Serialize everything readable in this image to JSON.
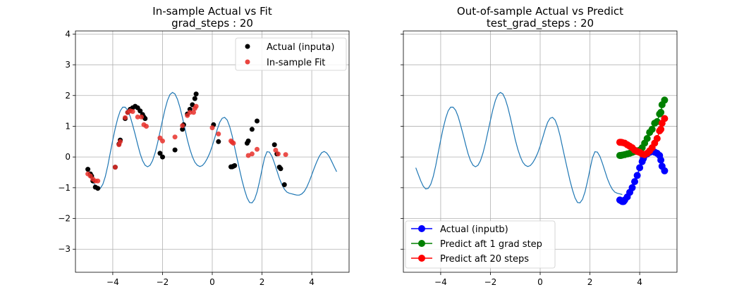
{
  "chart_data": [
    {
      "type": "scatter",
      "title": "In-sample Actual vs Fit",
      "subtitle": "grad_steps : 20",
      "xlabel": "",
      "ylabel": "",
      "xlim": [
        -5.5,
        5.5
      ],
      "ylim": [
        -3.75,
        4.1
      ],
      "xticks": [
        -4,
        -2,
        0,
        2,
        4
      ],
      "yticks": [
        -3,
        -2,
        -1,
        0,
        1,
        2,
        3,
        4
      ],
      "xtick_labels": [
        "−4",
        "−2",
        "0",
        "2",
        "4"
      ],
      "ytick_labels": [
        "−3",
        "−2",
        "−1",
        "0",
        "1",
        "2",
        "3",
        "4"
      ],
      "grid": true,
      "legend_position": "upper right",
      "curve": {
        "x": [
          -5.0,
          -4.9,
          -4.8,
          -4.7,
          -4.6,
          -4.5,
          -4.4,
          -4.3,
          -4.2,
          -4.1,
          -4.0,
          -3.9,
          -3.8,
          -3.7,
          -3.6,
          -3.5,
          -3.4,
          -3.3,
          -3.2,
          -3.1,
          -3.0,
          -2.9,
          -2.8,
          -2.7,
          -2.6,
          -2.5,
          -2.4,
          -2.3,
          -2.2,
          -2.1,
          -2.0,
          -1.9,
          -1.8,
          -1.7,
          -1.6,
          -1.5,
          -1.4,
          -1.3,
          -1.2,
          -1.1,
          -1.0,
          -0.9,
          -0.8,
          -0.7,
          -0.6,
          -0.5,
          -0.4,
          -0.3,
          -0.2,
          -0.1,
          0.0,
          0.1,
          0.2,
          0.3,
          0.4,
          0.5,
          0.6,
          0.7,
          0.8,
          0.9,
          1.0,
          1.1,
          1.2,
          1.3,
          1.4,
          1.5,
          1.6,
          1.7,
          1.8,
          1.9,
          2.0,
          2.1,
          2.2,
          2.3,
          2.4,
          2.5,
          2.6,
          2.7,
          2.8,
          2.9,
          3.0,
          3.1,
          3.2,
          3.3,
          3.4,
          3.5,
          3.6,
          3.7,
          3.8,
          3.9,
          4.0,
          4.1,
          4.2,
          4.3,
          4.4,
          4.5,
          4.6,
          4.7,
          4.8,
          4.9,
          5.0
        ],
        "y": [
          -0.35,
          -0.57,
          -0.78,
          -0.95,
          -1.04,
          -1.02,
          -0.89,
          -0.64,
          -0.28,
          0.14,
          0.55,
          0.93,
          1.26,
          1.5,
          1.62,
          1.62,
          1.52,
          1.32,
          1.04,
          0.73,
          0.41,
          0.11,
          -0.12,
          -0.27,
          -0.32,
          -0.27,
          -0.12,
          0.13,
          0.45,
          0.82,
          1.2,
          1.55,
          1.84,
          2.03,
          2.1,
          2.05,
          1.88,
          1.62,
          1.28,
          0.92,
          0.56,
          0.25,
          0.01,
          -0.17,
          -0.27,
          -0.31,
          -0.28,
          -0.19,
          -0.05,
          0.13,
          0.36,
          0.62,
          0.9,
          1.13,
          1.26,
          1.29,
          1.2,
          0.99,
          0.69,
          0.32,
          -0.06,
          -0.42,
          -0.77,
          -1.08,
          -1.33,
          -1.48,
          -1.49,
          -1.38,
          -1.14,
          -0.8,
          -0.41,
          -0.03,
          0.17,
          0.16,
          0.02,
          -0.2,
          -0.45,
          -0.7,
          -0.9,
          -1.05,
          -1.14,
          -1.18,
          -1.2,
          -1.22,
          -1.24,
          -1.24,
          -1.2,
          -1.12,
          -0.98,
          -0.79,
          -0.58,
          -0.36,
          -0.16,
          0.02,
          0.14,
          0.18,
          0.13,
          0.02,
          -0.14,
          -0.31,
          -0.48
        ]
      },
      "series": [
        {
          "name": "Actual (inputa)",
          "color": "#000000",
          "x": [
            -5.0,
            -4.9,
            -4.85,
            -4.8,
            -4.7,
            -4.6,
            -3.9,
            -3.75,
            -3.7,
            -3.5,
            -3.4,
            -3.3,
            -3.2,
            -3.1,
            -3.0,
            -2.9,
            -2.8,
            -2.75,
            -2.7,
            -2.1,
            -2.0,
            -1.5,
            -1.2,
            -1.15,
            -1.0,
            -0.9,
            -0.8,
            -0.7,
            -0.65,
            0.05,
            0.25,
            0.75,
            0.8,
            0.85,
            0.9,
            1.4,
            1.45,
            1.6,
            1.8,
            2.5,
            2.6,
            2.7,
            2.75,
            2.9
          ],
          "y": [
            -0.4,
            -0.55,
            -0.62,
            -0.78,
            -0.98,
            -1.02,
            -0.33,
            0.42,
            0.55,
            1.25,
            1.45,
            1.55,
            1.6,
            1.65,
            1.6,
            1.5,
            1.38,
            1.3,
            1.25,
            0.12,
            0.0,
            0.23,
            0.9,
            1.05,
            1.4,
            1.55,
            1.7,
            1.9,
            2.05,
            1.05,
            0.5,
            -0.32,
            -0.32,
            -0.3,
            -0.28,
            0.45,
            0.52,
            0.9,
            1.17,
            0.4,
            0.1,
            -0.33,
            -0.38,
            -0.9
          ]
        },
        {
          "name": "In-sample Fit",
          "color": "#e8302a",
          "x": [
            -5.0,
            -4.9,
            -4.8,
            -4.7,
            -4.6,
            -3.9,
            -3.75,
            -3.7,
            -3.5,
            -3.4,
            -3.3,
            -3.2,
            -3.0,
            -2.85,
            -2.75,
            -2.65,
            -2.1,
            -2.0,
            -1.5,
            -1.2,
            -1.0,
            -0.9,
            -0.75,
            -0.7,
            -0.65,
            0.0,
            0.25,
            0.75,
            0.8,
            0.85,
            1.45,
            1.6,
            1.8,
            2.55,
            2.65,
            2.95
          ],
          "y": [
            -0.55,
            -0.62,
            -0.72,
            -0.78,
            -0.78,
            -0.33,
            0.4,
            0.5,
            1.28,
            1.45,
            1.5,
            1.48,
            1.3,
            1.3,
            1.05,
            1.0,
            0.62,
            0.52,
            0.65,
            1.02,
            1.35,
            1.45,
            1.45,
            1.58,
            1.65,
            0.95,
            0.75,
            0.52,
            0.48,
            0.45,
            0.05,
            0.1,
            0.25,
            0.22,
            0.1,
            0.08
          ]
        }
      ]
    },
    {
      "type": "line",
      "title": "Out-of-sample Actual vs Predict",
      "subtitle": "test_grad_steps : 20",
      "xlabel": "",
      "ylabel": "",
      "xlim": [
        -5.5,
        5.5
      ],
      "ylim": [
        -3.75,
        4.1
      ],
      "xticks": [
        -4,
        -2,
        0,
        2,
        4
      ],
      "xtick_labels": [
        "−4",
        "−2",
        "0",
        "2",
        "4"
      ],
      "grid": true,
      "legend_position": "lower left",
      "curve": {
        "x": [
          -5.0,
          -4.9,
          -4.8,
          -4.7,
          -4.6,
          -4.5,
          -4.4,
          -4.3,
          -4.2,
          -4.1,
          -4.0,
          -3.9,
          -3.8,
          -3.7,
          -3.6,
          -3.5,
          -3.4,
          -3.3,
          -3.2,
          -3.1,
          -3.0,
          -2.9,
          -2.8,
          -2.7,
          -2.6,
          -2.5,
          -2.4,
          -2.3,
          -2.2,
          -2.1,
          -2.0,
          -1.9,
          -1.8,
          -1.7,
          -1.6,
          -1.5,
          -1.4,
          -1.3,
          -1.2,
          -1.1,
          -1.0,
          -0.9,
          -0.8,
          -0.7,
          -0.6,
          -0.5,
          -0.4,
          -0.3,
          -0.2,
          -0.1,
          0.0,
          0.1,
          0.2,
          0.3,
          0.4,
          0.5,
          0.6,
          0.7,
          0.8,
          0.9,
          1.0,
          1.1,
          1.2,
          1.3,
          1.4,
          1.5,
          1.6,
          1.7,
          1.8,
          1.9,
          2.0,
          2.1,
          2.2,
          2.3,
          2.4,
          2.5,
          2.6,
          2.7,
          2.8,
          2.9,
          3.0,
          3.1,
          3.2,
          3.3
        ],
        "y": [
          -0.35,
          -0.57,
          -0.78,
          -0.95,
          -1.04,
          -1.02,
          -0.89,
          -0.64,
          -0.28,
          0.14,
          0.55,
          0.93,
          1.26,
          1.5,
          1.62,
          1.62,
          1.52,
          1.32,
          1.04,
          0.73,
          0.41,
          0.11,
          -0.12,
          -0.27,
          -0.32,
          -0.27,
          -0.12,
          0.13,
          0.45,
          0.82,
          1.2,
          1.55,
          1.84,
          2.03,
          2.1,
          2.05,
          1.88,
          1.62,
          1.28,
          0.92,
          0.56,
          0.25,
          0.01,
          -0.17,
          -0.27,
          -0.31,
          -0.28,
          -0.19,
          -0.05,
          0.13,
          0.36,
          0.62,
          0.9,
          1.13,
          1.26,
          1.29,
          1.2,
          0.99,
          0.69,
          0.32,
          -0.06,
          -0.42,
          -0.77,
          -1.08,
          -1.33,
          -1.48,
          -1.49,
          -1.38,
          -1.14,
          -0.8,
          -0.41,
          -0.03,
          0.17,
          0.16,
          0.02,
          -0.2,
          -0.45,
          -0.7,
          -0.9,
          -1.05,
          -1.14,
          -1.18,
          -1.2,
          -1.22
        ]
      },
      "series": [
        {
          "name": "Actual (inputb)",
          "color": "#0000ff",
          "marker": "o",
          "x": [
            3.2,
            3.25,
            3.3,
            3.35,
            3.4,
            3.5,
            3.6,
            3.7,
            3.8,
            3.9,
            4.0,
            4.1,
            4.15,
            4.2,
            4.3,
            4.4,
            4.5,
            4.6,
            4.7,
            4.8,
            4.85,
            4.9,
            5.0
          ],
          "y": [
            -1.4,
            -1.42,
            -1.45,
            -1.45,
            -1.4,
            -1.3,
            -1.15,
            -1.0,
            -0.8,
            -0.6,
            -0.35,
            -0.15,
            -0.05,
            0.05,
            0.1,
            0.15,
            0.18,
            0.16,
            0.12,
            0.05,
            -0.1,
            -0.3,
            -0.45
          ]
        },
        {
          "name": "Predict aft 1 grad step",
          "color": "#008000",
          "marker": "o",
          "x": [
            3.2,
            3.25,
            3.3,
            3.4,
            3.5,
            3.6,
            3.7,
            3.8,
            3.9,
            4.0,
            4.1,
            4.2,
            4.3,
            4.4,
            4.5,
            4.6,
            4.7,
            4.8,
            4.85,
            4.9,
            5.0
          ],
          "y": [
            0.05,
            0.05,
            0.06,
            0.08,
            0.1,
            0.12,
            0.15,
            0.18,
            0.2,
            0.22,
            0.3,
            0.45,
            0.6,
            0.8,
            0.9,
            1.1,
            1.15,
            1.4,
            1.45,
            1.7,
            1.85
          ]
        },
        {
          "name": "Predict aft 20 steps",
          "color": "#ff0000",
          "marker": "o",
          "x": [
            3.2,
            3.25,
            3.3,
            3.4,
            3.5,
            3.6,
            3.7,
            3.8,
            3.9,
            4.0,
            4.1,
            4.2,
            4.3,
            4.4,
            4.5,
            4.6,
            4.7,
            4.8,
            4.85,
            4.9,
            5.0
          ],
          "y": [
            0.48,
            0.48,
            0.47,
            0.45,
            0.4,
            0.35,
            0.3,
            0.22,
            0.18,
            0.15,
            0.1,
            0.08,
            0.12,
            0.2,
            0.3,
            0.45,
            0.6,
            0.85,
            0.9,
            1.1,
            1.25
          ]
        }
      ]
    }
  ]
}
